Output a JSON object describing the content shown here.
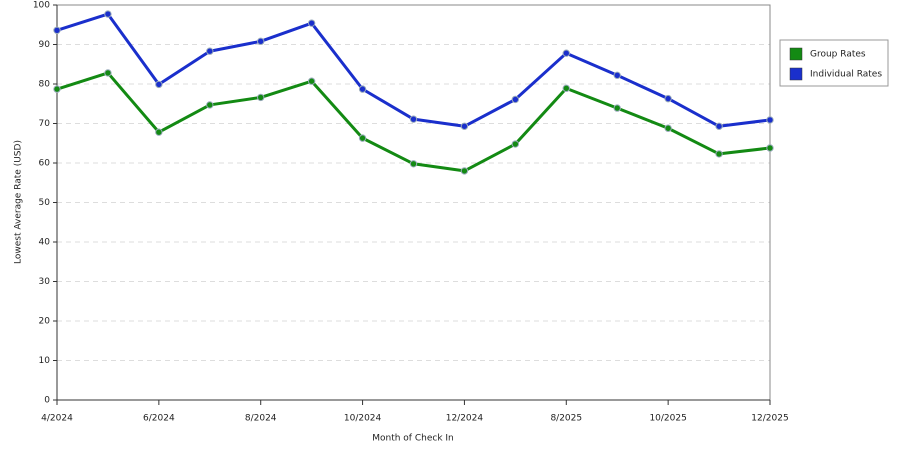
{
  "chart_data": {
    "type": "line",
    "x_label": "Month of Check In",
    "y_label": "Lowest Average Rate (USD)",
    "categories": [
      "4/2024",
      null,
      "6/2024",
      null,
      "8/2024",
      null,
      "10/2024",
      null,
      "12/2024",
      null,
      "8/2025",
      null,
      "10/2025",
      null,
      "12/2025"
    ],
    "series": [
      {
        "name": "Group Rates",
        "color": "#138a13",
        "values": [
          78.7,
          82.8,
          67.8,
          74.7,
          76.6,
          80.7,
          66.3,
          59.8,
          58.0,
          64.8,
          78.9,
          73.9,
          68.8,
          62.3,
          63.8
        ]
      },
      {
        "name": "Individual Rates",
        "color": "#1a2fcc",
        "values": [
          93.6,
          97.7,
          79.9,
          88.3,
          90.8,
          95.4,
          78.7,
          71.1,
          69.3,
          76.1,
          87.8,
          82.2,
          76.3,
          69.3,
          70.9
        ]
      }
    ],
    "ylim": [
      0,
      100
    ],
    "yticks": [
      0,
      10,
      20,
      30,
      40,
      50,
      60,
      70,
      80,
      90,
      100
    ],
    "grid": true,
    "legend": "right"
  }
}
